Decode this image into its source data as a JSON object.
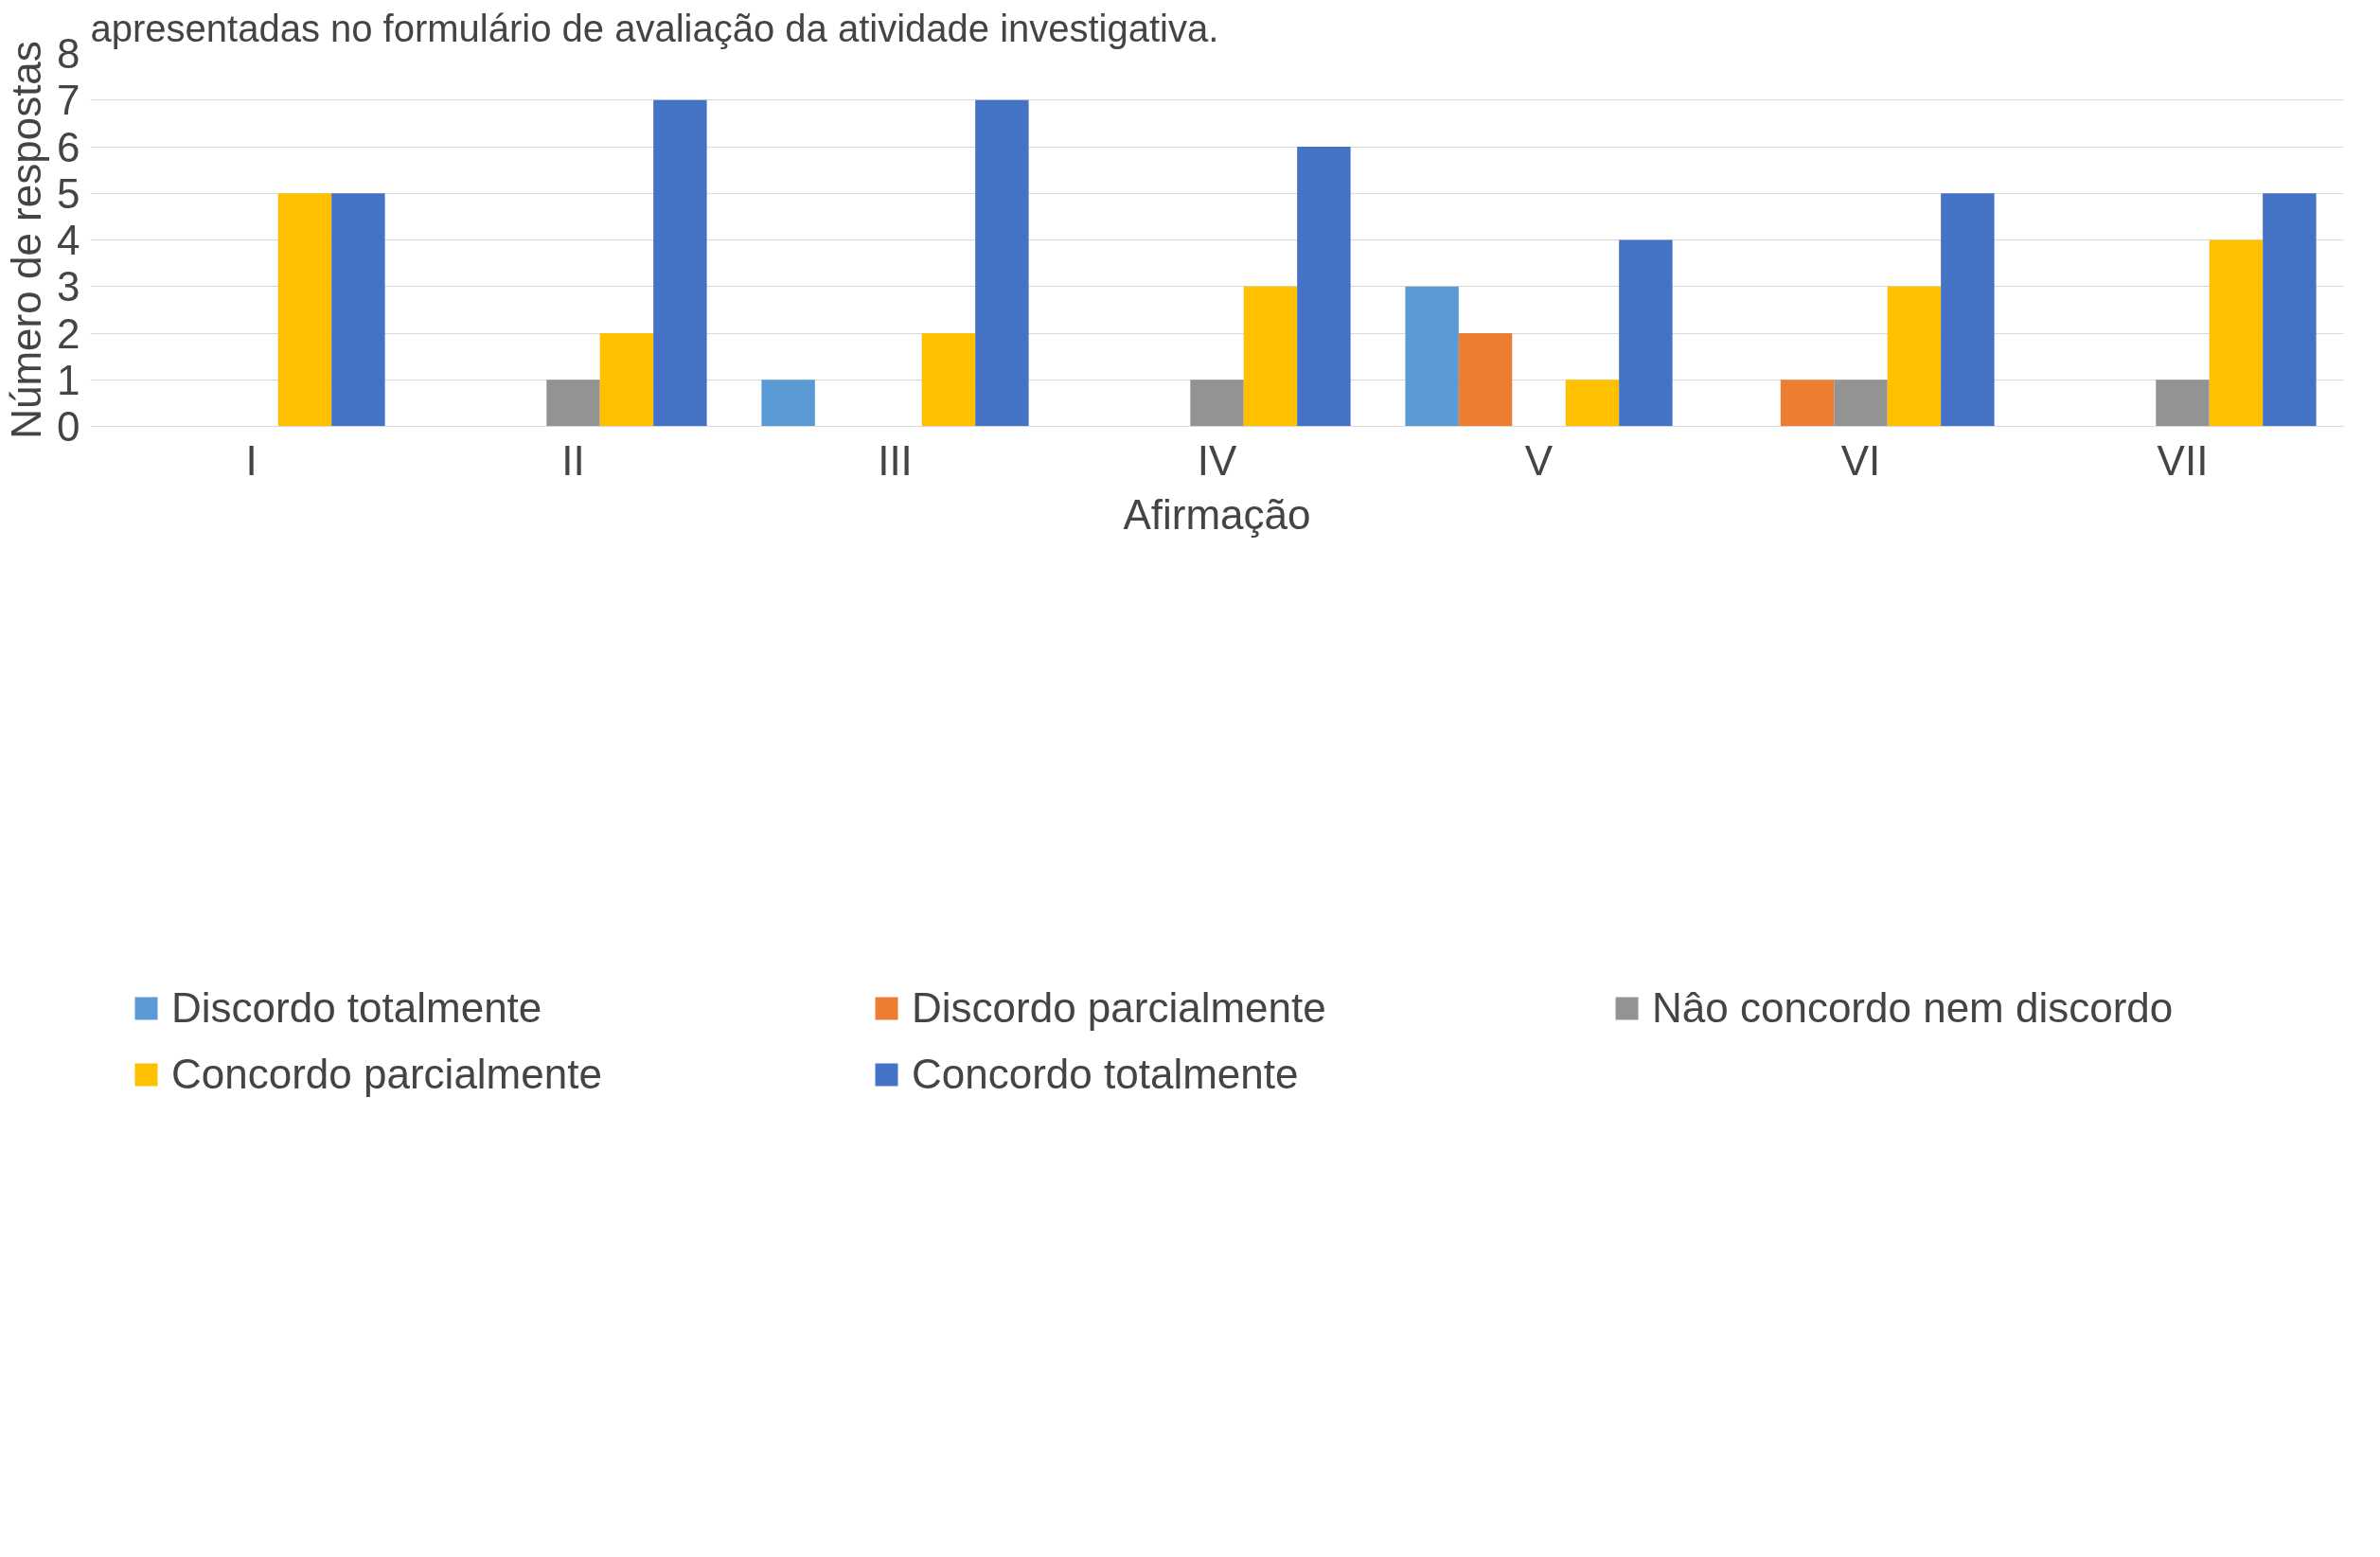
{
  "chart_data": {
    "type": "bar",
    "title": "apresentadas no formulário de avaliação da atividade investigativa.",
    "xlabel": "Afirmação",
    "ylabel": "Número de respostas",
    "categories": [
      "I",
      "II",
      "III",
      "IV",
      "V",
      "VI",
      "VII"
    ],
    "series": [
      {
        "name": "Discordo totalmente",
        "color": "#5b9bd5",
        "values": [
          0,
          0,
          1,
          0,
          3,
          0,
          0
        ]
      },
      {
        "name": "Discordo parcialmente",
        "color": "#ed7d31",
        "values": [
          0,
          0,
          0,
          0,
          2,
          1,
          0
        ]
      },
      {
        "name": "Nâo concordo nem discordo",
        "color": "#939393",
        "values": [
          0,
          1,
          0,
          1,
          0,
          1,
          1
        ]
      },
      {
        "name": "Concordo parcialmente",
        "color": "#ffc000",
        "values": [
          5,
          2,
          2,
          3,
          1,
          3,
          4
        ]
      },
      {
        "name": "Concordo totalmente",
        "color": "#4472c4",
        "values": [
          5,
          7,
          7,
          6,
          4,
          5,
          5
        ]
      }
    ],
    "ylim": [
      0,
      8
    ],
    "yticks": [
      0,
      1,
      2,
      3,
      4,
      5,
      6,
      7,
      8
    ],
    "grid": "y",
    "legend": "bottom"
  }
}
